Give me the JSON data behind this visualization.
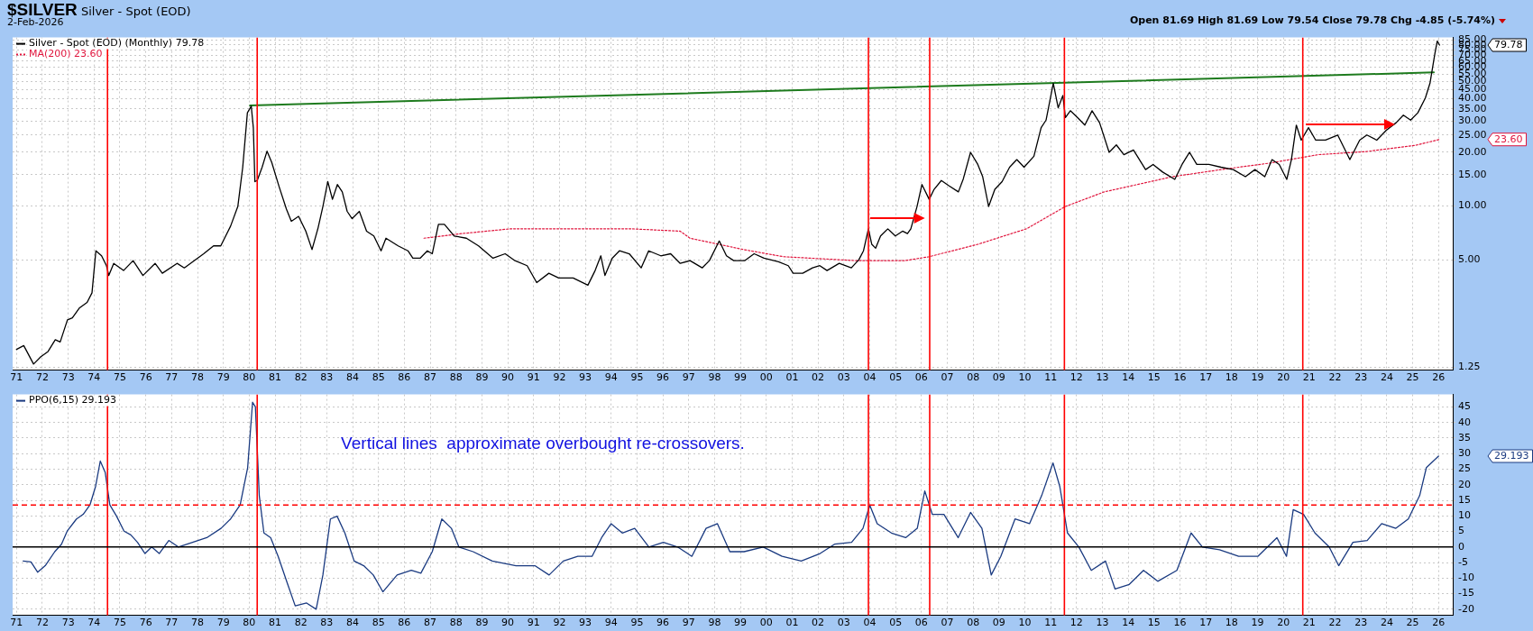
{
  "chart_data": [
    {
      "type": "line",
      "title": "$SILVER",
      "subtitle": "Silver - Spot (EOD)",
      "annotations": [
        "2-Feb-2026",
        "Open 81.69  High 81.69  Low 79.54  Close 79.78  Chg -4.85 (-5.74%)",
        "79.78",
        "23.60"
      ],
      "log": "y",
      "grid": true,
      "legend": "top left",
      "marker": "none",
      "xlim": [
        1970.85,
        2026.55
      ],
      "ylim": [
        1.2,
        88
      ],
      "xticks": [
        {
          "value": 1971,
          "label": "71"
        },
        {
          "value": 1972,
          "label": "72"
        },
        {
          "value": 1973,
          "label": "73"
        },
        {
          "value": 1974,
          "label": "74"
        },
        {
          "value": 1975,
          "label": "75"
        },
        {
          "value": 1976,
          "label": "76"
        },
        {
          "value": 1977,
          "label": "77"
        },
        {
          "value": 1978,
          "label": "78"
        },
        {
          "value": 1979,
          "label": "79"
        },
        {
          "value": 1980,
          "label": "80"
        },
        {
          "value": 1981,
          "label": "81"
        },
        {
          "value": 1982,
          "label": "82"
        },
        {
          "value": 1983,
          "label": "83"
        },
        {
          "value": 1984,
          "label": "84"
        },
        {
          "value": 1985,
          "label": "85"
        },
        {
          "value": 1986,
          "label": "86"
        },
        {
          "value": 1987,
          "label": "87"
        },
        {
          "value": 1988,
          "label": "88"
        },
        {
          "value": 1989,
          "label": "89"
        },
        {
          "value": 1990,
          "label": "90"
        },
        {
          "value": 1991,
          "label": "91"
        },
        {
          "value": 1992,
          "label": "92"
        },
        {
          "value": 1993,
          "label": "93"
        },
        {
          "value": 1994,
          "label": "94"
        },
        {
          "value": 1995,
          "label": "95"
        },
        {
          "value": 1996,
          "label": "96"
        },
        {
          "value": 1997,
          "label": "97"
        },
        {
          "value": 1998,
          "label": "98"
        },
        {
          "value": 1999,
          "label": "99"
        },
        {
          "value": 2000,
          "label": "00"
        },
        {
          "value": 2001,
          "label": "01"
        },
        {
          "value": 2002,
          "label": "02"
        },
        {
          "value": 2003,
          "label": "03"
        },
        {
          "value": 2004,
          "label": "04"
        },
        {
          "value": 2005,
          "label": "05"
        },
        {
          "value": 2006,
          "label": "06"
        },
        {
          "value": 2007,
          "label": "07"
        },
        {
          "value": 2008,
          "label": "08"
        },
        {
          "value": 2009,
          "label": "09"
        },
        {
          "value": 2010,
          "label": "10"
        },
        {
          "value": 2011,
          "label": "11"
        },
        {
          "value": 2012,
          "label": "12"
        },
        {
          "value": 2013,
          "label": "13"
        },
        {
          "value": 2014,
          "label": "14"
        },
        {
          "value": 2015,
          "label": "15"
        },
        {
          "value": 2016,
          "label": "16"
        },
        {
          "value": 2017,
          "label": "17"
        },
        {
          "value": 2018,
          "label": "18"
        },
        {
          "value": 2019,
          "label": "19"
        },
        {
          "value": 2020,
          "label": "20"
        },
        {
          "value": 2021,
          "label": "21"
        },
        {
          "value": 2022,
          "label": "22"
        },
        {
          "value": 2023,
          "label": "23"
        },
        {
          "value": 2024,
          "label": "24"
        },
        {
          "value": 2025,
          "label": "25"
        },
        {
          "value": 2026,
          "label": "26"
        }
      ],
      "yticks": [
        1.25,
        {
          "value": 5,
          "label": "5.00"
        },
        {
          "value": 10,
          "label": "10.00"
        },
        {
          "value": 15,
          "label": "15.00"
        },
        {
          "value": 20,
          "label": "20.00"
        },
        {
          "value": 25,
          "label": "25.00"
        },
        {
          "value": 30,
          "label": "30.00"
        },
        {
          "value": 35,
          "label": "35.00"
        },
        {
          "value": 40,
          "label": "40.00"
        },
        {
          "value": 45,
          "label": "45.00"
        },
        {
          "value": 50,
          "label": "50.00"
        },
        {
          "value": 55,
          "label": "55.00"
        },
        {
          "value": 60,
          "label": "60.00"
        },
        {
          "value": 65,
          "label": "65.00"
        },
        {
          "value": 70,
          "label": "70.00"
        },
        {
          "value": 75,
          "label": "75.00"
        },
        {
          "value": 80,
          "label": "80.00"
        },
        {
          "value": 85,
          "label": "85.00"
        }
      ],
      "ref_lines": [
        {
          "axis": "x",
          "value": 1974.52,
          "color": "#ff0000"
        },
        {
          "axis": "x",
          "value": 1980.31,
          "color": "#ff0000"
        },
        {
          "axis": "x",
          "value": 2003.95,
          "color": "#ff0000"
        },
        {
          "axis": "x",
          "value": 2006.32,
          "color": "#ff0000"
        },
        {
          "axis": "x",
          "value": 2011.53,
          "color": "#ff0000"
        },
        {
          "axis": "x",
          "value": 2020.75,
          "color": "#ff0000"
        }
      ],
      "series": [
        {
          "name": "Silver - Spot (EOD) (Monthly) 79.78",
          "color": "#000000",
          "line_style": "solid",
          "x": [
            1971.0,
            1971.28,
            1971.66,
            1971.94,
            1972.22,
            1972.5,
            1972.69,
            1972.97,
            1973.16,
            1973.44,
            1973.73,
            1973.92,
            1974.07,
            1974.29,
            1974.48,
            1974.57,
            1974.76,
            1975.14,
            1975.51,
            1975.89,
            1976.36,
            1976.64,
            1977.21,
            1977.49,
            1977.87,
            1978.24,
            1978.62,
            1978.9,
            1979.28,
            1979.56,
            1979.75,
            1979.93,
            1980.08,
            1980.16,
            1980.22,
            1980.31,
            1980.5,
            1980.69,
            1980.87,
            1981.16,
            1981.44,
            1981.63,
            1981.91,
            1982.19,
            1982.43,
            1982.66,
            1982.85,
            1983.04,
            1983.22,
            1983.41,
            1983.6,
            1983.79,
            1983.98,
            1984.26,
            1984.54,
            1984.82,
            1985.1,
            1985.29,
            1985.76,
            1986.14,
            1986.33,
            1986.61,
            1986.89,
            1987.08,
            1987.32,
            1987.55,
            1987.93,
            1988.4,
            1988.87,
            1989.43,
            1989.9,
            1990.28,
            1990.75,
            1991.12,
            1991.59,
            1991.97,
            1992.53,
            1993.1,
            1993.38,
            1993.6,
            1993.76,
            1994.04,
            1994.32,
            1994.7,
            1995.16,
            1995.45,
            1995.92,
            1996.3,
            1996.67,
            1997.05,
            1997.52,
            1997.8,
            1998.18,
            1998.46,
            1998.74,
            1999.16,
            1999.53,
            1999.91,
            2000.47,
            2000.85,
            2001.04,
            2001.41,
            2001.79,
            2002.07,
            2002.35,
            2002.82,
            2003.29,
            2003.58,
            2003.76,
            2003.95,
            2004.08,
            2004.23,
            2004.42,
            2004.7,
            2004.99,
            2005.27,
            2005.46,
            2005.59,
            2005.83,
            2006.02,
            2006.3,
            2006.49,
            2006.77,
            2007.06,
            2007.43,
            2007.62,
            2007.9,
            2008.18,
            2008.37,
            2008.6,
            2008.84,
            2009.12,
            2009.41,
            2009.69,
            2009.97,
            2010.35,
            2010.63,
            2010.82,
            2011.1,
            2011.29,
            2011.47,
            2011.57,
            2011.76,
            2012.04,
            2012.32,
            2012.6,
            2012.89,
            2013.26,
            2013.54,
            2013.83,
            2014.2,
            2014.67,
            2014.96,
            2015.33,
            2015.8,
            2016.08,
            2016.37,
            2016.65,
            2017.12,
            2017.59,
            2018.06,
            2018.53,
            2018.9,
            2019.28,
            2019.56,
            2019.84,
            2020.13,
            2020.31,
            2020.5,
            2020.69,
            2020.97,
            2021.25,
            2021.63,
            2022.1,
            2022.57,
            2022.95,
            2023.23,
            2023.61,
            2023.98,
            2024.36,
            2024.64,
            2024.92,
            2025.2,
            2025.49,
            2025.67,
            2025.86,
            2025.95,
            2026.04
          ],
          "values": [
            1.57,
            1.65,
            1.3,
            1.43,
            1.53,
            1.78,
            1.73,
            2.3,
            2.36,
            2.69,
            2.88,
            3.26,
            5.61,
            5.26,
            4.63,
            4.08,
            4.77,
            4.35,
            4.94,
            4.08,
            4.77,
            4.2,
            4.77,
            4.5,
            4.94,
            5.4,
            5.98,
            5.98,
            7.71,
            9.94,
            16.5,
            33.3,
            36.3,
            27.5,
            13.7,
            13.9,
            16.5,
            20.3,
            17.6,
            12.8,
            9.6,
            8.21,
            8.75,
            7.23,
            5.7,
            7.5,
            9.94,
            13.7,
            10.9,
            13.2,
            12.0,
            9.33,
            8.5,
            9.33,
            7.23,
            6.79,
            5.61,
            6.6,
            5.98,
            5.61,
            5.1,
            5.1,
            5.61,
            5.4,
            7.9,
            7.9,
            6.79,
            6.6,
            5.98,
            5.1,
            5.4,
            4.94,
            4.63,
            3.72,
            4.2,
            3.95,
            3.95,
            3.6,
            4.35,
            5.26,
            4.08,
            5.1,
            5.61,
            5.4,
            4.5,
            5.61,
            5.26,
            5.4,
            4.77,
            4.94,
            4.5,
            4.94,
            6.37,
            5.26,
            4.94,
            4.94,
            5.4,
            5.1,
            4.87,
            4.63,
            4.2,
            4.2,
            4.5,
            4.63,
            4.35,
            4.77,
            4.5,
            5.0,
            5.61,
            7.45,
            6.1,
            5.8,
            6.79,
            7.45,
            6.79,
            7.23,
            7.0,
            7.45,
            9.94,
            13.2,
            10.9,
            12.4,
            13.9,
            13.0,
            12.0,
            14.2,
            20.0,
            17.1,
            14.6,
            9.94,
            12.4,
            13.7,
            16.5,
            18.2,
            16.5,
            19.0,
            27.5,
            30.3,
            48.8,
            35.5,
            41.6,
            31.3,
            34.2,
            31.3,
            28.4,
            34.2,
            29.3,
            20.0,
            22.0,
            19.4,
            20.6,
            16.0,
            17.1,
            15.5,
            14.1,
            17.1,
            20.0,
            17.1,
            17.1,
            16.5,
            16.0,
            14.6,
            16.0,
            14.6,
            18.2,
            17.1,
            14.1,
            18.2,
            28.4,
            23.4,
            27.5,
            23.4,
            23.4,
            25.0,
            18.2,
            23.4,
            25.0,
            23.4,
            26.6,
            29.3,
            32.3,
            30.3,
            33.3,
            40.3,
            48.8,
            71.5,
            84,
            79.78
          ]
        },
        {
          "name": "MA(200) 23.60",
          "color": "#e0143c",
          "line_style": "dotted",
          "x": [
            1986.76,
            1988.2,
            1990.09,
            1994.79,
            1996.67,
            1997.05,
            1999.12,
            2000.66,
            2003.48,
            2005.36,
            2006.3,
            2008.18,
            2010.06,
            2011.57,
            2013.07,
            2015.71,
            2017.59,
            2019.47,
            2021.35,
            2023.23,
            2025.11,
            2026.04
          ],
          "values": [
            6.6,
            7.0,
            7.45,
            7.45,
            7.23,
            6.6,
            5.7,
            5.2,
            4.94,
            4.94,
            5.2,
            6.1,
            7.45,
            9.94,
            12.0,
            14.6,
            16.0,
            17.4,
            19.4,
            20.2,
            21.9,
            23.6
          ]
        },
        {
          "color": "#1e7b1e",
          "line_style": "solid",
          "x": [
            1980.03,
            2025.82
          ],
          "values": [
            36.6,
            56.1
          ]
        }
      ]
    },
    {
      "type": "line",
      "grid": true,
      "legend": "top left",
      "marker": "none",
      "annotations": [
        "Vertical lines  approximate overbought re-crossovers.",
        "29.193"
      ],
      "xlim": [
        1970.85,
        2026.55
      ],
      "ylim": [
        -22,
        49
      ],
      "xticks": [
        {
          "value": 1971,
          "label": "71"
        },
        {
          "value": 1972,
          "label": "72"
        },
        {
          "value": 1973,
          "label": "73"
        },
        {
          "value": 1974,
          "label": "74"
        },
        {
          "value": 1975,
          "label": "75"
        },
        {
          "value": 1976,
          "label": "76"
        },
        {
          "value": 1977,
          "label": "77"
        },
        {
          "value": 1978,
          "label": "78"
        },
        {
          "value": 1979,
          "label": "79"
        },
        {
          "value": 1980,
          "label": "80"
        },
        {
          "value": 1981,
          "label": "81"
        },
        {
          "value": 1982,
          "label": "82"
        },
        {
          "value": 1983,
          "label": "83"
        },
        {
          "value": 1984,
          "label": "84"
        },
        {
          "value": 1985,
          "label": "85"
        },
        {
          "value": 1986,
          "label": "86"
        },
        {
          "value": 1987,
          "label": "87"
        },
        {
          "value": 1988,
          "label": "88"
        },
        {
          "value": 1989,
          "label": "89"
        },
        {
          "value": 1990,
          "label": "90"
        },
        {
          "value": 1991,
          "label": "91"
        },
        {
          "value": 1992,
          "label": "92"
        },
        {
          "value": 1993,
          "label": "93"
        },
        {
          "value": 1994,
          "label": "94"
        },
        {
          "value": 1995,
          "label": "95"
        },
        {
          "value": 1996,
          "label": "96"
        },
        {
          "value": 1997,
          "label": "97"
        },
        {
          "value": 1998,
          "label": "98"
        },
        {
          "value": 1999,
          "label": "99"
        },
        {
          "value": 2000,
          "label": "00"
        },
        {
          "value": 2001,
          "label": "01"
        },
        {
          "value": 2002,
          "label": "02"
        },
        {
          "value": 2003,
          "label": "03"
        },
        {
          "value": 2004,
          "label": "04"
        },
        {
          "value": 2005,
          "label": "05"
        },
        {
          "value": 2006,
          "label": "06"
        },
        {
          "value": 2007,
          "label": "07"
        },
        {
          "value": 2008,
          "label": "08"
        },
        {
          "value": 2009,
          "label": "09"
        },
        {
          "value": 2010,
          "label": "10"
        },
        {
          "value": 2011,
          "label": "11"
        },
        {
          "value": 2012,
          "label": "12"
        },
        {
          "value": 2013,
          "label": "13"
        },
        {
          "value": 2014,
          "label": "14"
        },
        {
          "value": 2015,
          "label": "15"
        },
        {
          "value": 2016,
          "label": "16"
        },
        {
          "value": 2017,
          "label": "17"
        },
        {
          "value": 2018,
          "label": "18"
        },
        {
          "value": 2019,
          "label": "19"
        },
        {
          "value": 2020,
          "label": "20"
        },
        {
          "value": 2021,
          "label": "21"
        },
        {
          "value": 2022,
          "label": "22"
        },
        {
          "value": 2023,
          "label": "23"
        },
        {
          "value": 2024,
          "label": "24"
        },
        {
          "value": 2025,
          "label": "25"
        },
        {
          "value": 2026,
          "label": "26"
        }
      ],
      "yticks": [
        -20,
        -15,
        -10,
        -5,
        0,
        5,
        10,
        15,
        20,
        25,
        30,
        35,
        40,
        45
      ],
      "ref_lines": [
        {
          "axis": "x",
          "value": 1974.52,
          "color": "#ff0000"
        },
        {
          "axis": "x",
          "value": 1980.31,
          "color": "#ff0000"
        },
        {
          "axis": "x",
          "value": 2003.95,
          "color": "#ff0000"
        },
        {
          "axis": "x",
          "value": 2006.32,
          "color": "#ff0000"
        },
        {
          "axis": "x",
          "value": 2011.53,
          "color": "#ff0000"
        },
        {
          "axis": "x",
          "value": 2020.75,
          "color": "#ff0000"
        },
        {
          "axis": "y",
          "value": 0,
          "color": "#000000",
          "line_style": "solid"
        },
        {
          "axis": "y",
          "value": 13.5,
          "color": "#ff0000",
          "line_style": "dashed"
        }
      ],
      "series": [
        {
          "name": "PPO(6,15) 29.193",
          "color": "#1a3a80",
          "line_style": "solid",
          "x": [
            1971.26,
            1971.56,
            1971.82,
            1972.11,
            1972.48,
            1972.74,
            1972.96,
            1973.32,
            1973.58,
            1973.84,
            1974.06,
            1974.24,
            1974.43,
            1974.61,
            1974.87,
            1975.16,
            1975.42,
            1975.68,
            1975.97,
            1976.23,
            1976.52,
            1976.89,
            1977.26,
            1977.81,
            1978.36,
            1978.91,
            1979.28,
            1979.65,
            1979.94,
            1980.13,
            1980.24,
            1980.39,
            1980.57,
            1980.83,
            1981.12,
            1981.49,
            1981.78,
            1982.22,
            1982.59,
            1982.85,
            1983.14,
            1983.4,
            1983.7,
            1984.06,
            1984.43,
            1984.8,
            1985.17,
            1985.72,
            1986.27,
            1986.64,
            1987.08,
            1987.45,
            1987.82,
            1988.11,
            1988.66,
            1989.4,
            1990.32,
            1991.05,
            1991.6,
            1992.15,
            1992.71,
            1993.26,
            1993.63,
            1994.0,
            1994.43,
            1994.91,
            1995.46,
            1996.02,
            1996.57,
            1997.12,
            1997.67,
            1998.11,
            1998.59,
            1999.14,
            1999.88,
            2000.61,
            2001.35,
            2002.08,
            2002.64,
            2003.3,
            2003.74,
            2004.0,
            2004.29,
            2004.84,
            2005.39,
            2005.84,
            2006.13,
            2006.42,
            2006.87,
            2007.42,
            2007.9,
            2008.34,
            2008.7,
            2009.07,
            2009.62,
            2010.18,
            2010.65,
            2011.09,
            2011.35,
            2011.65,
            2012.09,
            2012.57,
            2013.12,
            2013.49,
            2014.04,
            2014.59,
            2015.14,
            2015.88,
            2016.43,
            2016.87,
            2017.53,
            2018.27,
            2019.01,
            2019.75,
            2020.12,
            2020.38,
            2020.78,
            2021.22,
            2021.77,
            2022.14,
            2022.69,
            2023.24,
            2023.8,
            2024.35,
            2024.83,
            2025.27,
            2025.53,
            2026.0
          ],
          "values": [
            -4.5,
            -4.8,
            -8.1,
            -6,
            -1.5,
            0.9,
            5.1,
            9,
            10.5,
            13.5,
            19.5,
            27.6,
            24,
            13.5,
            9.9,
            5.1,
            3.9,
            1.5,
            -2.1,
            0,
            -2.1,
            2.1,
            0,
            1.5,
            3,
            6,
            9,
            13.5,
            25.5,
            46.5,
            45,
            16.5,
            4.5,
            3,
            -3,
            -12,
            -18.9,
            -18,
            -20,
            -9,
            9,
            9.9,
            4.5,
            -4.5,
            -6,
            -9,
            -14.4,
            -9,
            -7.5,
            -8.4,
            -1.5,
            9,
            6,
            0,
            -1.5,
            -4.5,
            -6,
            -6,
            -9,
            -4.5,
            -3,
            -3,
            3,
            7.5,
            4.5,
            6,
            0,
            1.5,
            0,
            -3,
            6,
            7.5,
            -1.5,
            -1.5,
            0,
            -3,
            -4.5,
            -2.1,
            0.9,
            1.5,
            6,
            13.5,
            7.5,
            4.5,
            3,
            6,
            18,
            10.5,
            10.5,
            3,
            11.1,
            6,
            -9,
            -3,
            9,
            7.5,
            16.5,
            27,
            19.5,
            4.5,
            0,
            -7.5,
            -4.5,
            -13.5,
            -12,
            -7.5,
            -11,
            -7.5,
            4.5,
            0,
            -0.9,
            -3,
            -3,
            3,
            -3,
            12,
            10.5,
            4.5,
            0,
            -6,
            1.5,
            2.1,
            7.5,
            6,
            9,
            16.5,
            25.5,
            29.193
          ]
        }
      ]
    }
  ]
}
